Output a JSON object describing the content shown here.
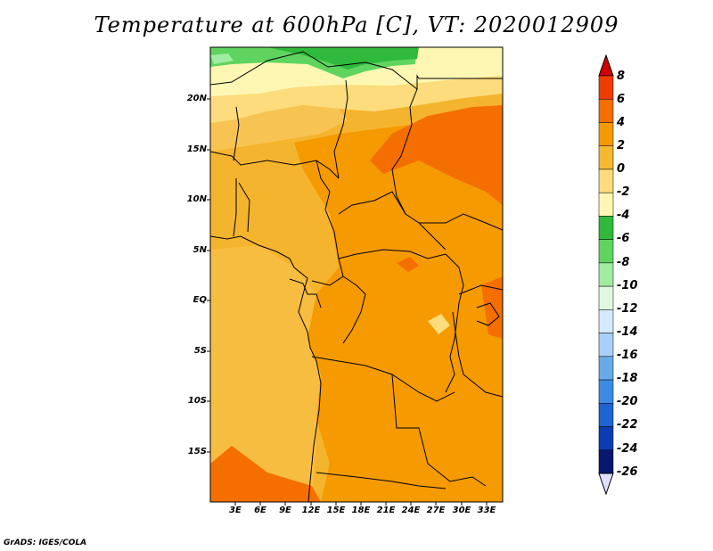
{
  "title": "Temperature at 600hPa [C], VT: 2020012909",
  "footer": "GrADS: IGES/COLA",
  "map": {
    "lat_labels": [
      "20N",
      "15N",
      "10N",
      "5N",
      "EQ",
      "5S",
      "10S",
      "15S"
    ],
    "lon_labels": [
      "3E",
      "6E",
      "9E",
      "12E",
      "15E",
      "18E",
      "21E",
      "24E",
      "27E",
      "30E",
      "33E"
    ]
  },
  "colorbar": {
    "labels": [
      "8",
      "6",
      "4",
      "2",
      "0",
      "-2",
      "-4",
      "-6",
      "-8",
      "-10",
      "-12",
      "-14",
      "-16",
      "-18",
      "-20",
      "-22",
      "-24",
      "-26"
    ],
    "colors": [
      "#d00000",
      "#f03c00",
      "#f56e00",
      "#f59a00",
      "#f5b82e",
      "#fcdc7c",
      "#fef7b4",
      "#2fba3c",
      "#5fd55f",
      "#a0eca0",
      "#e0f8e0",
      "#d6eaff",
      "#a8d0f8",
      "#6aaae8",
      "#3c8ce6",
      "#1e64d2",
      "#0a3cb4",
      "#081870",
      "#e0e0ff"
    ]
  }
}
